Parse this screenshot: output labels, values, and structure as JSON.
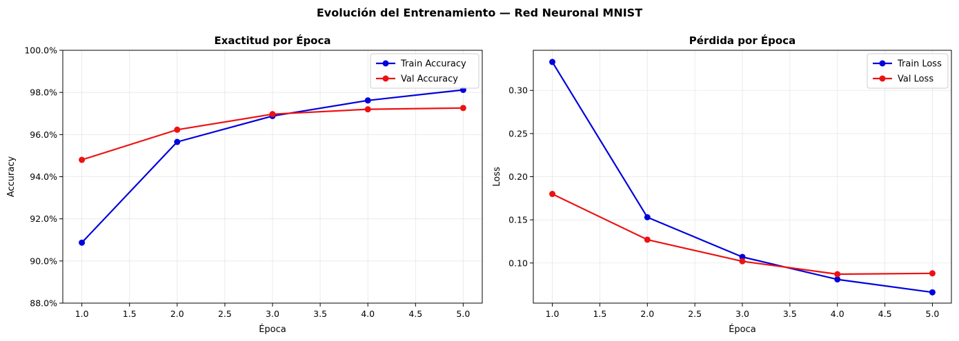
{
  "figure": {
    "title": "Evolución del Entrenamiento — Red Neuronal MNIST"
  },
  "chart_data": [
    {
      "type": "line",
      "title": "Exactitud por Época",
      "xlabel": "Época",
      "ylabel": "Accuracy",
      "xlim": [
        0.8,
        5.2
      ],
      "ylim": [
        88.0,
        100.0
      ],
      "xticks": [
        1.0,
        1.5,
        2.0,
        2.5,
        3.0,
        3.5,
        4.0,
        4.5,
        5.0
      ],
      "xtick_labels": [
        "1.0",
        "1.5",
        "2.0",
        "2.5",
        "3.0",
        "3.5",
        "4.0",
        "4.5",
        "5.0"
      ],
      "yticks": [
        88,
        90,
        92,
        94,
        96,
        98,
        100
      ],
      "ytick_labels": [
        "88.0%",
        "90.0%",
        "92.0%",
        "94.0%",
        "96.0%",
        "98.0%",
        "100.0%"
      ],
      "grid": true,
      "legend_position": "top-right",
      "x": [
        1,
        2,
        3,
        4,
        5
      ],
      "series": [
        {
          "name": "Train Accuracy",
          "color": "#0000dd",
          "values": [
            90.87,
            95.65,
            96.88,
            97.62,
            98.12
          ]
        },
        {
          "name": "Val Accuracy",
          "color": "#ee1111",
          "values": [
            94.8,
            96.23,
            96.97,
            97.2,
            97.26
          ]
        }
      ]
    },
    {
      "type": "line",
      "title": "Pérdida por Época",
      "xlabel": "Época",
      "ylabel": "Loss",
      "xlim": [
        0.8,
        5.2
      ],
      "ylim": [
        0.0535,
        0.3465
      ],
      "xticks": [
        1.0,
        1.5,
        2.0,
        2.5,
        3.0,
        3.5,
        4.0,
        4.5,
        5.0
      ],
      "xtick_labels": [
        "1.0",
        "1.5",
        "2.0",
        "2.5",
        "3.0",
        "3.5",
        "4.0",
        "4.5",
        "5.0"
      ],
      "yticks": [
        0.1,
        0.15,
        0.2,
        0.25,
        0.3
      ],
      "ytick_labels": [
        "0.10",
        "0.15",
        "0.20",
        "0.25",
        "0.30"
      ],
      "grid": true,
      "legend_position": "top-right",
      "x": [
        1,
        2,
        3,
        4,
        5
      ],
      "series": [
        {
          "name": "Train Loss",
          "color": "#0000dd",
          "values": [
            0.333,
            0.153,
            0.107,
            0.081,
            0.066
          ]
        },
        {
          "name": "Val Loss",
          "color": "#ee1111",
          "values": [
            0.18,
            0.127,
            0.102,
            0.087,
            0.088
          ]
        }
      ]
    }
  ]
}
